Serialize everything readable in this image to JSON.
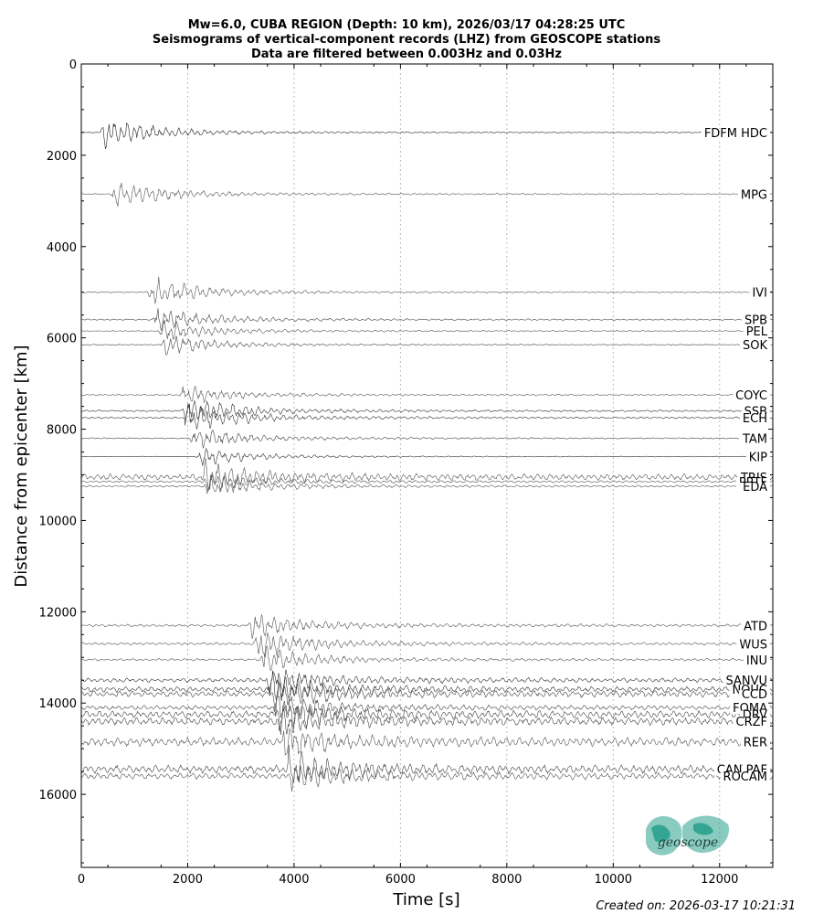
{
  "chart_data": {
    "type": "seismogram-section",
    "title_lines": [
      "Mw=6.0, CUBA REGION (Depth: 10 km), 2026/03/17 04:28:25 UTC",
      "Seismograms of vertical-component records (LHZ) from GEOSCOPE stations",
      "Data are filtered between 0.003Hz and 0.03Hz"
    ],
    "xlabel": "Time [s]",
    "ylabel": "Distance from epicenter [km]",
    "xlim": [
      0,
      13000
    ],
    "ylim": [
      0,
      17600
    ],
    "y_inverted": true,
    "xticks": [
      0,
      2000,
      4000,
      6000,
      8000,
      10000,
      12000
    ],
    "xtick_labels": [
      "0",
      "2000",
      "4000",
      "6000",
      "8000",
      "10000",
      "12000"
    ],
    "yticks": [
      0,
      2000,
      4000,
      6000,
      8000,
      10000,
      12000,
      14000,
      16000
    ],
    "ytick_labels": [
      "0",
      "2000",
      "4000",
      "6000",
      "8000",
      "10000",
      "12000",
      "14000",
      "16000"
    ],
    "vertical_grid": true,
    "stations": [
      {
        "name": "FDFM HDC",
        "distance": 1500,
        "arrival": 400,
        "amp": 1.0,
        "noise": 0.03,
        "color": "#222222"
      },
      {
        "name": "MPG",
        "distance": 2850,
        "arrival": 600,
        "amp": 0.9,
        "noise": 0.05,
        "color": "#555555"
      },
      {
        "name": "IVI",
        "distance": 5000,
        "arrival": 1300,
        "amp": 0.9,
        "noise": 0.05,
        "color": "#555555"
      },
      {
        "name": "SPB",
        "distance": 5600,
        "arrival": 1400,
        "amp": 0.8,
        "noise": 0.06,
        "color": "#444444"
      },
      {
        "name": "PEL",
        "distance": 5850,
        "arrival": 1500,
        "amp": 0.7,
        "noise": 0.05,
        "color": "#555555"
      },
      {
        "name": "SOK",
        "distance": 6150,
        "arrival": 1550,
        "amp": 0.7,
        "noise": 0.04,
        "color": "#444444"
      },
      {
        "name": "COYC",
        "distance": 7250,
        "arrival": 1900,
        "amp": 0.6,
        "noise": 0.08,
        "color": "#555555"
      },
      {
        "name": "SSB",
        "distance": 7600,
        "arrival": 1950,
        "amp": 0.9,
        "noise": 0.07,
        "color": "#333333"
      },
      {
        "name": "ECH",
        "distance": 7750,
        "arrival": 2000,
        "amp": 0.9,
        "noise": 0.07,
        "color": "#333333"
      },
      {
        "name": "TAM",
        "distance": 8200,
        "arrival": 2100,
        "amp": 0.7,
        "noise": 0.06,
        "color": "#444444"
      },
      {
        "name": "KIP",
        "distance": 8600,
        "arrival": 2200,
        "amp": 0.6,
        "noise": 0.04,
        "color": "#333333"
      },
      {
        "name": "TRIS",
        "distance": 9050,
        "arrival": 2300,
        "amp": 0.9,
        "noise": 0.25,
        "color": "#555555"
      },
      {
        "name": "PPTF",
        "distance": 9150,
        "arrival": 2300,
        "amp": 0.6,
        "noise": 0.12,
        "color": "#555555"
      },
      {
        "name": "EDA",
        "distance": 9250,
        "arrival": 2350,
        "amp": 0.7,
        "noise": 0.1,
        "color": "#555555"
      },
      {
        "name": "ATD",
        "distance": 12300,
        "arrival": 3200,
        "amp": 0.8,
        "noise": 0.12,
        "color": "#555555"
      },
      {
        "name": "WUS",
        "distance": 12700,
        "arrival": 3300,
        "amp": 0.9,
        "noise": 0.1,
        "color": "#555555"
      },
      {
        "name": "INU",
        "distance": 13050,
        "arrival": 3400,
        "amp": 0.8,
        "noise": 0.1,
        "color": "#555555"
      },
      {
        "name": "SANVU",
        "distance": 13500,
        "arrival": 3500,
        "amp": 0.8,
        "noise": 0.2,
        "color": "#333333"
      },
      {
        "name": "NOUC",
        "distance": 13700,
        "arrival": 3550,
        "amp": 0.9,
        "noise": 0.22,
        "color": "#333333"
      },
      {
        "name": "CCD",
        "distance": 13800,
        "arrival": 3600,
        "amp": 0.9,
        "noise": 0.25,
        "color": "#444444"
      },
      {
        "name": "FOMA",
        "distance": 14100,
        "arrival": 3650,
        "amp": 0.8,
        "noise": 0.2,
        "color": "#444444"
      },
      {
        "name": "DRV",
        "distance": 14250,
        "arrival": 3700,
        "amp": 0.9,
        "noise": 0.3,
        "color": "#444444"
      },
      {
        "name": "CRZF",
        "distance": 14400,
        "arrival": 3700,
        "amp": 0.9,
        "noise": 0.3,
        "color": "#444444"
      },
      {
        "name": "RER",
        "distance": 14850,
        "arrival": 3800,
        "amp": 0.9,
        "noise": 0.35,
        "color": "#555555"
      },
      {
        "name": "CAN PAF",
        "distance": 15450,
        "arrival": 3900,
        "amp": 1.0,
        "noise": 0.3,
        "color": "#444444"
      },
      {
        "name": "ROCAM",
        "distance": 15600,
        "arrival": 3950,
        "amp": 0.9,
        "noise": 0.25,
        "color": "#555555"
      }
    ]
  },
  "logo": {
    "text": "geoscope",
    "color": "#2aa18d"
  },
  "footer": {
    "created": "Created on: 2026-03-17 10:21:31"
  }
}
